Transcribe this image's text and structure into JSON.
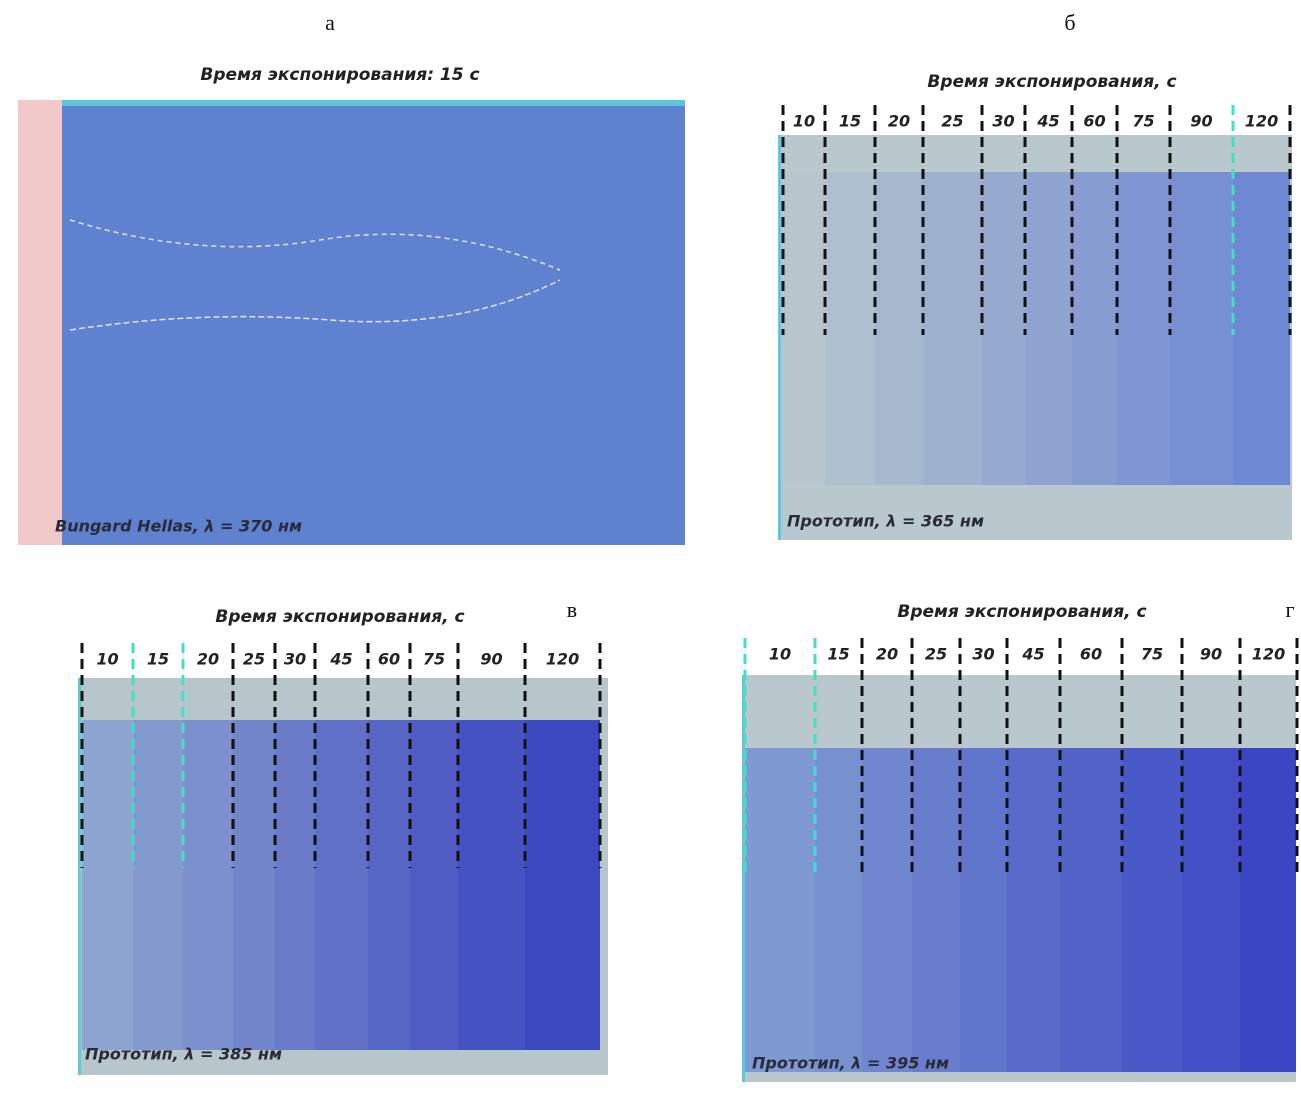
{
  "panels": [
    {
      "letter": "а",
      "title": "Время экспонирования: 15 с",
      "caption": "Bungard Hellas, λ = 370 нм"
    },
    {
      "letter": "б",
      "title": "Время экспонирования, с",
      "times": [
        10,
        15,
        20,
        25,
        30,
        45,
        60,
        75,
        90,
        120
      ],
      "caption": "Прототип, λ = 365 нм"
    },
    {
      "letter": "в",
      "title": "Время экспонирования, с",
      "times": [
        10,
        15,
        20,
        25,
        30,
        45,
        60,
        75,
        90,
        120
      ],
      "caption": "Прототип, λ = 385 нм"
    },
    {
      "letter": "г",
      "title": "Время экспонирования, с",
      "times": [
        10,
        15,
        20,
        25,
        30,
        45,
        60,
        75,
        90,
        120
      ],
      "caption": "Прототип, λ = 395 нм"
    }
  ]
}
